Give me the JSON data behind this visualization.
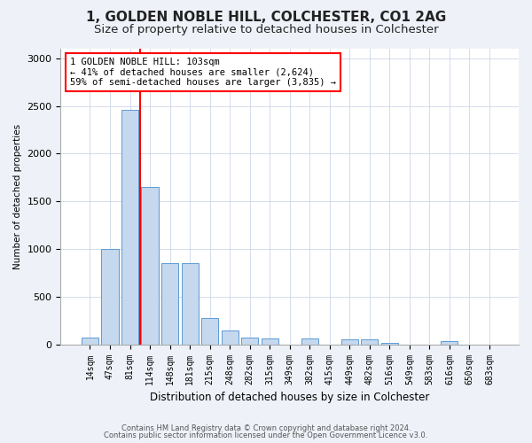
{
  "title1": "1, GOLDEN NOBLE HILL, COLCHESTER, CO1 2AG",
  "title2": "Size of property relative to detached houses in Colchester",
  "xlabel": "Distribution of detached houses by size in Colchester",
  "ylabel": "Number of detached properties",
  "categories": [
    "14sqm",
    "47sqm",
    "81sqm",
    "114sqm",
    "148sqm",
    "181sqm",
    "215sqm",
    "248sqm",
    "282sqm",
    "315sqm",
    "349sqm",
    "382sqm",
    "415sqm",
    "449sqm",
    "482sqm",
    "516sqm",
    "549sqm",
    "583sqm",
    "616sqm",
    "650sqm",
    "683sqm"
  ],
  "values": [
    75,
    1000,
    2460,
    1650,
    850,
    850,
    280,
    150,
    75,
    65,
    0,
    65,
    0,
    55,
    55,
    15,
    0,
    0,
    30,
    0,
    0
  ],
  "bar_color": "#c5d8ed",
  "bar_edge_color": "#5b9bd5",
  "property_line_x": 2.5,
  "annotation_text": "1 GOLDEN NOBLE HILL: 103sqm\n← 41% of detached houses are smaller (2,624)\n59% of semi-detached houses are larger (3,835) →",
  "annotation_box_color": "white",
  "annotation_box_edge_color": "red",
  "vline_color": "red",
  "ylim": [
    0,
    3100
  ],
  "yticks": [
    0,
    500,
    1000,
    1500,
    2000,
    2500,
    3000
  ],
  "footer1": "Contains HM Land Registry data © Crown copyright and database right 2024.",
  "footer2": "Contains public sector information licensed under the Open Government Licence v3.0.",
  "bg_color": "#eef2f8",
  "plot_bg_color": "#ffffff",
  "title1_fontsize": 11,
  "title2_fontsize": 9.5,
  "annot_fontsize": 7.5,
  "ylabel_fontsize": 7.5,
  "xlabel_fontsize": 8.5,
  "tick_fontsize": 7,
  "footer_fontsize": 6
}
